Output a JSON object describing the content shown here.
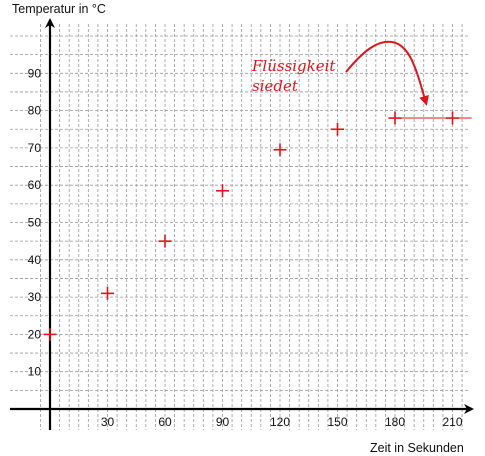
{
  "chart_data": {
    "type": "scatter",
    "title": "",
    "xlabel": "Zeit in Sekunden",
    "ylabel": "Temperatur in °C",
    "xlim": [
      -10,
      215
    ],
    "ylim": [
      -5,
      100
    ],
    "x_ticks": [
      30,
      60,
      90,
      120,
      150,
      180,
      210
    ],
    "y_ticks": [
      10,
      20,
      30,
      40,
      50,
      60,
      70,
      80,
      90
    ],
    "grid": true,
    "marker": "plus",
    "marker_color": "#e1141b",
    "points": [
      {
        "x": 0,
        "y": 20
      },
      {
        "x": 30,
        "y": 31
      },
      {
        "x": 60,
        "y": 45
      },
      {
        "x": 90,
        "y": 58.5
      },
      {
        "x": 120,
        "y": 69.5
      },
      {
        "x": 150,
        "y": 75
      },
      {
        "x": 180,
        "y": 78
      },
      {
        "x": 210,
        "y": 78
      }
    ],
    "plateau_line": {
      "x_from": 180,
      "x_to": 220,
      "y": 78
    },
    "annotation": {
      "line1": "Flüssigkeit",
      "line2": "siedet",
      "color": "#e1141b"
    }
  }
}
